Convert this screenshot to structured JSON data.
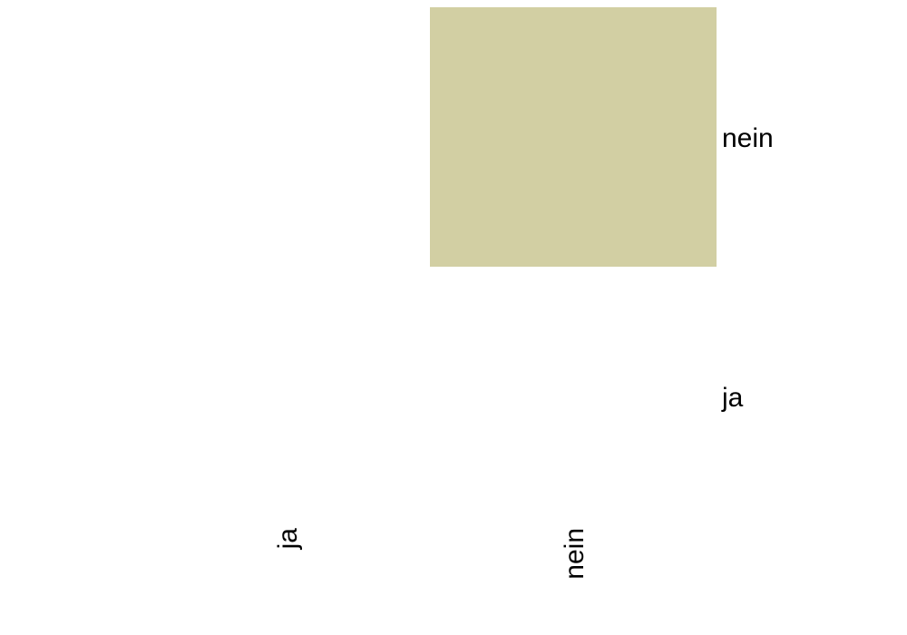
{
  "chart_data": {
    "type": "heatmap",
    "x_categories": [
      "ja",
      "nein"
    ],
    "y_categories": [
      "ja",
      "nein"
    ],
    "cells": [
      {
        "x": "ja",
        "y": "ja",
        "value": 0
      },
      {
        "x": "ja",
        "y": "nein",
        "value": 0
      },
      {
        "x": "nein",
        "y": "ja",
        "value": 0
      },
      {
        "x": "nein",
        "y": "nein",
        "value": 1
      }
    ],
    "colors": {
      "high": "#D2CFA3",
      "low": "#FFFFFF"
    },
    "x_label_orientation": "vertical",
    "y_label_position": "right",
    "grid": false,
    "legend": "none"
  }
}
